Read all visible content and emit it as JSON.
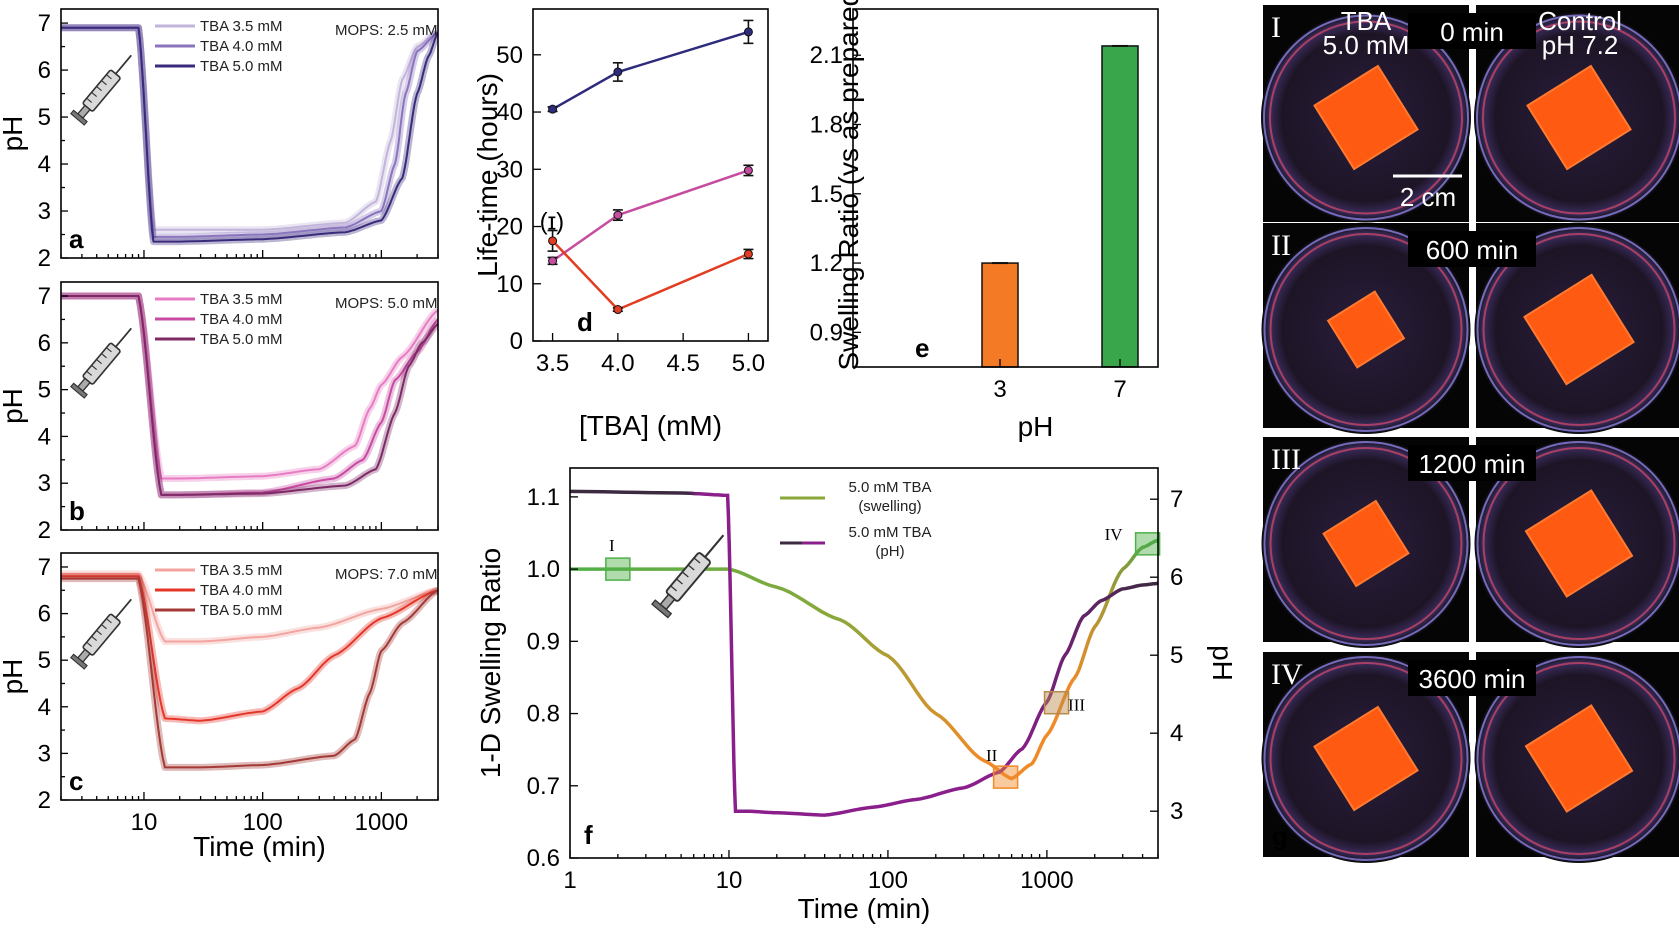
{
  "chart_data": [
    {
      "panel": "a",
      "type": "line",
      "xlabel": "",
      "ylabel": "pH",
      "xscale": "log",
      "xlim": [
        2,
        3000
      ],
      "ylim": [
        2,
        7.3
      ],
      "yticks": [
        "2",
        "3",
        "4",
        "5",
        "6",
        "7"
      ],
      "annotation": "MOPS: 2.5 mM",
      "annotation_color": "#3d2d8c",
      "legend_position": "top-right",
      "series": [
        {
          "name": "TBA 3.5 mM",
          "color": "#c2b4da",
          "x": [
            2,
            9,
            12,
            20,
            100,
            500,
            900,
            1200,
            1500,
            2000,
            3000
          ],
          "y": [
            6.9,
            6.9,
            2.6,
            2.6,
            2.6,
            2.75,
            3.2,
            4.5,
            5.8,
            6.5,
            6.8
          ]
        },
        {
          "name": "TBA 4.0 mM",
          "color": "#8a74bd",
          "x": [
            2,
            9,
            12,
            20,
            100,
            500,
            1000,
            1300,
            1600,
            2000,
            3000
          ],
          "y": [
            6.9,
            6.9,
            2.45,
            2.45,
            2.5,
            2.65,
            3.0,
            4.0,
            5.5,
            6.4,
            6.8
          ]
        },
        {
          "name": "TBA 5.0 mM",
          "color": "#3a2a7c",
          "x": [
            2,
            9,
            12,
            20,
            100,
            500,
            1000,
            1500,
            2000,
            2500,
            3000
          ],
          "y": [
            6.9,
            6.9,
            2.35,
            2.35,
            2.4,
            2.55,
            2.8,
            3.7,
            5.5,
            6.3,
            6.8
          ]
        }
      ]
    },
    {
      "panel": "b",
      "type": "line",
      "xlabel": "",
      "ylabel": "pH",
      "xscale": "log",
      "xlim": [
        2,
        3000
      ],
      "ylim": [
        2,
        7.3
      ],
      "yticks": [
        "2",
        "3",
        "4",
        "5",
        "6",
        "7"
      ],
      "annotation": "MOPS: 5.0 mM",
      "annotation_color": "#d23fa1",
      "legend_position": "top-right",
      "series": [
        {
          "name": "TBA 3.5 mM",
          "color": "#e77cc4",
          "x": [
            2,
            9,
            14,
            20,
            100,
            300,
            600,
            800,
            1000,
            1500,
            3000
          ],
          "y": [
            7.0,
            7.0,
            3.1,
            3.1,
            3.15,
            3.3,
            3.8,
            4.6,
            5.1,
            5.7,
            6.7
          ]
        },
        {
          "name": "TBA 4.0 mM",
          "color": "#c84aa3",
          "x": [
            2,
            9,
            14,
            20,
            100,
            400,
            700,
            1000,
            1300,
            2000,
            3000
          ],
          "y": [
            7.0,
            7.0,
            2.75,
            2.75,
            2.8,
            3.1,
            3.5,
            4.3,
            5.2,
            5.8,
            6.5
          ]
        },
        {
          "name": "TBA 5.0 mM",
          "color": "#7d2a66",
          "x": [
            2,
            9,
            14,
            20,
            100,
            500,
            900,
            1300,
            1700,
            2200,
            3000
          ],
          "y": [
            7.0,
            7.0,
            2.75,
            2.75,
            2.78,
            2.95,
            3.3,
            4.5,
            5.5,
            6.0,
            6.4
          ]
        }
      ]
    },
    {
      "panel": "c",
      "type": "line",
      "xlabel": "Time (min)",
      "ylabel": "pH",
      "xscale": "log",
      "xlim": [
        2,
        3000
      ],
      "ylim": [
        2,
        7.3
      ],
      "xticks": [
        "10",
        "100",
        "1000"
      ],
      "yticks": [
        "2",
        "3",
        "4",
        "5",
        "6",
        "7"
      ],
      "annotation": "MOPS: 7.0 mM",
      "annotation_color": "#e23c2a",
      "legend_position": "top-right",
      "series": [
        {
          "name": "TBA 3.5 mM",
          "color": "#f2a5a0",
          "x": [
            2,
            9,
            15,
            30,
            100,
            300,
            1000,
            3000
          ],
          "y": [
            6.85,
            6.85,
            5.4,
            5.4,
            5.5,
            5.7,
            6.1,
            6.5
          ]
        },
        {
          "name": "TBA 4.0 mM",
          "color": "#e4372a",
          "x": [
            2,
            9,
            15,
            30,
            100,
            200,
            400,
            1000,
            3000
          ],
          "y": [
            6.8,
            6.8,
            3.75,
            3.7,
            3.9,
            4.4,
            5.1,
            5.9,
            6.5
          ]
        },
        {
          "name": "TBA 5.0 mM",
          "color": "#a33a36",
          "x": [
            2,
            9,
            15,
            30,
            100,
            400,
            600,
            800,
            1000,
            1500,
            3000
          ],
          "y": [
            6.75,
            6.75,
            2.7,
            2.7,
            2.75,
            2.95,
            3.3,
            4.3,
            5.2,
            5.8,
            6.5
          ]
        }
      ]
    },
    {
      "panel": "d",
      "type": "line",
      "xlabel": "[TBA] (mM)",
      "ylabel": "Life-time (hours)",
      "xlim": [
        3.35,
        5.15
      ],
      "ylim": [
        0,
        58
      ],
      "xticks": [
        "3.5",
        "4.0",
        "4.5",
        "5.0"
      ],
      "yticks": [
        "0",
        "10",
        "20",
        "30",
        "40",
        "50"
      ],
      "annotation": "(ɪ)",
      "series": [
        {
          "color": "#2e2a7c",
          "x": [
            3.5,
            4.0,
            5.0
          ],
          "y": [
            40.5,
            47,
            54
          ],
          "err": [
            0.4,
            1.6,
            2.0
          ]
        },
        {
          "color": "#c64c9f",
          "x": [
            3.5,
            4.0,
            5.0
          ],
          "y": [
            14,
            22,
            29.8
          ],
          "err": [
            0.6,
            0.9,
            0.9
          ]
        },
        {
          "color": "#e23c22",
          "x": [
            3.5,
            4.0,
            5.0
          ],
          "y": [
            17.5,
            5.5,
            15.2
          ],
          "err": [
            1.8,
            0.3,
            0.8
          ]
        }
      ]
    },
    {
      "panel": "e",
      "type": "bar",
      "xlabel": "pH",
      "ylabel": "Swelling Ratio (vs as prepared)",
      "ylim": [
        0.75,
        2.3
      ],
      "yticks": [
        "0.9",
        "1.2",
        "1.5",
        "1.8",
        "2.1"
      ],
      "categories": [
        "3",
        "7"
      ],
      "values": [
        1.2,
        2.14
      ],
      "colors": [
        "#f47a26",
        "#3aa64c"
      ]
    },
    {
      "panel": "f",
      "type": "line",
      "xlabel": "Time (min)",
      "ylabel": "1-D Swelling Ratio",
      "ylabel_right": "pH",
      "xscale": "log",
      "xlim": [
        1,
        5000
      ],
      "ylim": [
        0.6,
        1.14
      ],
      "ylim_right": [
        2.4,
        7.4
      ],
      "xticks": [
        "1",
        "10",
        "100",
        "1000"
      ],
      "yticks": [
        "0.6",
        "0.7",
        "0.8",
        "0.9",
        "1.0",
        "1.1"
      ],
      "yticks_right": [
        "3",
        "4",
        "5",
        "6",
        "7"
      ],
      "legend_position": "top-right",
      "legend": [
        "5.0 mM TBA",
        "(swelling)",
        "5.0 mM TBA",
        "(pH)"
      ],
      "markers": [
        "I",
        "II",
        "III",
        "IV"
      ],
      "series": [
        {
          "name": "5.0 mM TBA (swelling)",
          "x": [
            1,
            2,
            5,
            10,
            20,
            50,
            100,
            200,
            400,
            600,
            800,
            1000,
            1500,
            2000,
            3000,
            4000,
            5000
          ],
          "y": [
            1.0,
            1.0,
            1.0,
            1.0,
            0.975,
            0.93,
            0.88,
            0.8,
            0.735,
            0.71,
            0.73,
            0.77,
            0.85,
            0.92,
            1.0,
            1.03,
            1.04
          ]
        },
        {
          "name": "5.0 mM TBA (pH)",
          "x": [
            1,
            5,
            9.8,
            11,
            13,
            20,
            40,
            80,
            150,
            300,
            500,
            700,
            1000,
            1300,
            1700,
            2200,
            3000,
            4000,
            5000
          ],
          "y": [
            7.1,
            7.08,
            7.05,
            3.0,
            3.0,
            2.98,
            2.95,
            3.05,
            3.15,
            3.3,
            3.5,
            3.8,
            4.4,
            5.0,
            5.5,
            5.7,
            5.85,
            5.9,
            5.92
          ]
        }
      ],
      "marker_points": [
        {
          "label": "I",
          "x": 2,
          "y": 1.0
        },
        {
          "label": "II",
          "x": 550,
          "y": 0.712
        },
        {
          "label": "III",
          "x": 1150,
          "y": 0.815
        },
        {
          "label": "IV",
          "x": 4300,
          "y": 1.035
        }
      ]
    }
  ],
  "photos": {
    "panel_letter": "g",
    "scale_bar": "2 cm",
    "left_caption": [
      "TBA",
      "5.0 mM"
    ],
    "right_caption": [
      "Control",
      "pH 7.2"
    ],
    "rows": [
      {
        "label": "I",
        "time": "0 min",
        "sample_size": 0.68,
        "control_size": 0.68
      },
      {
        "label": "II",
        "time": "600 min",
        "sample_size": 0.5,
        "control_size": 0.72
      },
      {
        "label": "III",
        "time": "1200 min",
        "sample_size": 0.56,
        "control_size": 0.7
      },
      {
        "label": "IV",
        "time": "3600 min",
        "sample_size": 0.68,
        "control_size": 0.7
      }
    ]
  }
}
